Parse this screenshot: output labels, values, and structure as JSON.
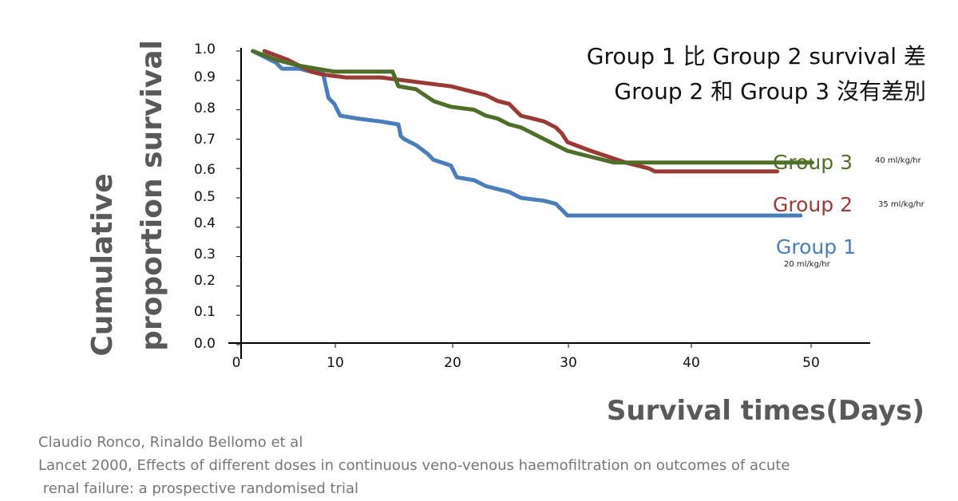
{
  "chart_data": {
    "type": "line",
    "title_lines": [
      "Group 1 比 Group 2 survival 差",
      "Group 2 和 Group 3 沒有差別"
    ],
    "ylabel_lines": [
      "Cumulative",
      "proportion survival"
    ],
    "xlabel": "Survival times(Days)",
    "xlim": [
      0,
      53
    ],
    "ylim": [
      0,
      1.0
    ],
    "yticks": [
      "1.0",
      "0.9",
      "0.8",
      "0.7",
      "0.6",
      "0.5",
      "0.4",
      "0.3",
      "0.2",
      "0.1",
      "0.0"
    ],
    "xticks": [
      "0",
      "10",
      "20",
      "30",
      "40",
      "50"
    ],
    "grid": false,
    "series": [
      {
        "name": "Group 1",
        "dose": "20 ml/kg/hr",
        "color": "#4a7ebb",
        "x": [
          1,
          3,
          3.5,
          5,
          6,
          7,
          7.5,
          8,
          8.5,
          10,
          12,
          13.5,
          13.7,
          14,
          15,
          16,
          16.5,
          18,
          18.5,
          20,
          21,
          22,
          23,
          24,
          26,
          27,
          28,
          30,
          35,
          40,
          45,
          48
        ],
        "y": [
          1.0,
          0.96,
          0.94,
          0.94,
          0.93,
          0.93,
          0.84,
          0.82,
          0.78,
          0.77,
          0.76,
          0.75,
          0.71,
          0.7,
          0.68,
          0.65,
          0.63,
          0.61,
          0.57,
          0.56,
          0.54,
          0.53,
          0.52,
          0.5,
          0.49,
          0.48,
          0.44,
          0.44,
          0.44,
          0.44,
          0.44,
          0.44
        ]
      },
      {
        "name": "Group 2",
        "dose": "35 ml/kg/hr",
        "color": "#9b3a35",
        "x": [
          2,
          4,
          6,
          7,
          9,
          12,
          14,
          18,
          21,
          22,
          23,
          24,
          25,
          26,
          27,
          27.5,
          28,
          30,
          33,
          35,
          35.5,
          40,
          46
        ],
        "y": [
          1.0,
          0.97,
          0.93,
          0.92,
          0.91,
          0.91,
          0.9,
          0.88,
          0.85,
          0.83,
          0.82,
          0.78,
          0.77,
          0.76,
          0.74,
          0.72,
          0.69,
          0.66,
          0.62,
          0.6,
          0.59,
          0.59,
          0.59
        ]
      },
      {
        "name": "Group 3",
        "dose": "40 ml/kg/hr",
        "color": "#4f6e27",
        "x": [
          1,
          3,
          5,
          8,
          10,
          13,
          13.5,
          15,
          16.5,
          18,
          20,
          21,
          22,
          23,
          24,
          25,
          26,
          27,
          28,
          29,
          30,
          32,
          32.5,
          35,
          40,
          46,
          49
        ],
        "y": [
          1.0,
          0.97,
          0.95,
          0.93,
          0.93,
          0.93,
          0.88,
          0.87,
          0.83,
          0.81,
          0.8,
          0.78,
          0.77,
          0.75,
          0.74,
          0.72,
          0.7,
          0.68,
          0.66,
          0.65,
          0.64,
          0.62,
          0.62,
          0.62,
          0.62,
          0.62,
          0.62
        ]
      }
    ]
  },
  "citation_lines": [
    "Claudio Ronco, Rinaldo Bellomo et al",
    "Lancet 2000, Effects of different doses in continuous veno-venous haemofiltration on outcomes of acute",
    " renal failure: a prospective randomised trial"
  ]
}
